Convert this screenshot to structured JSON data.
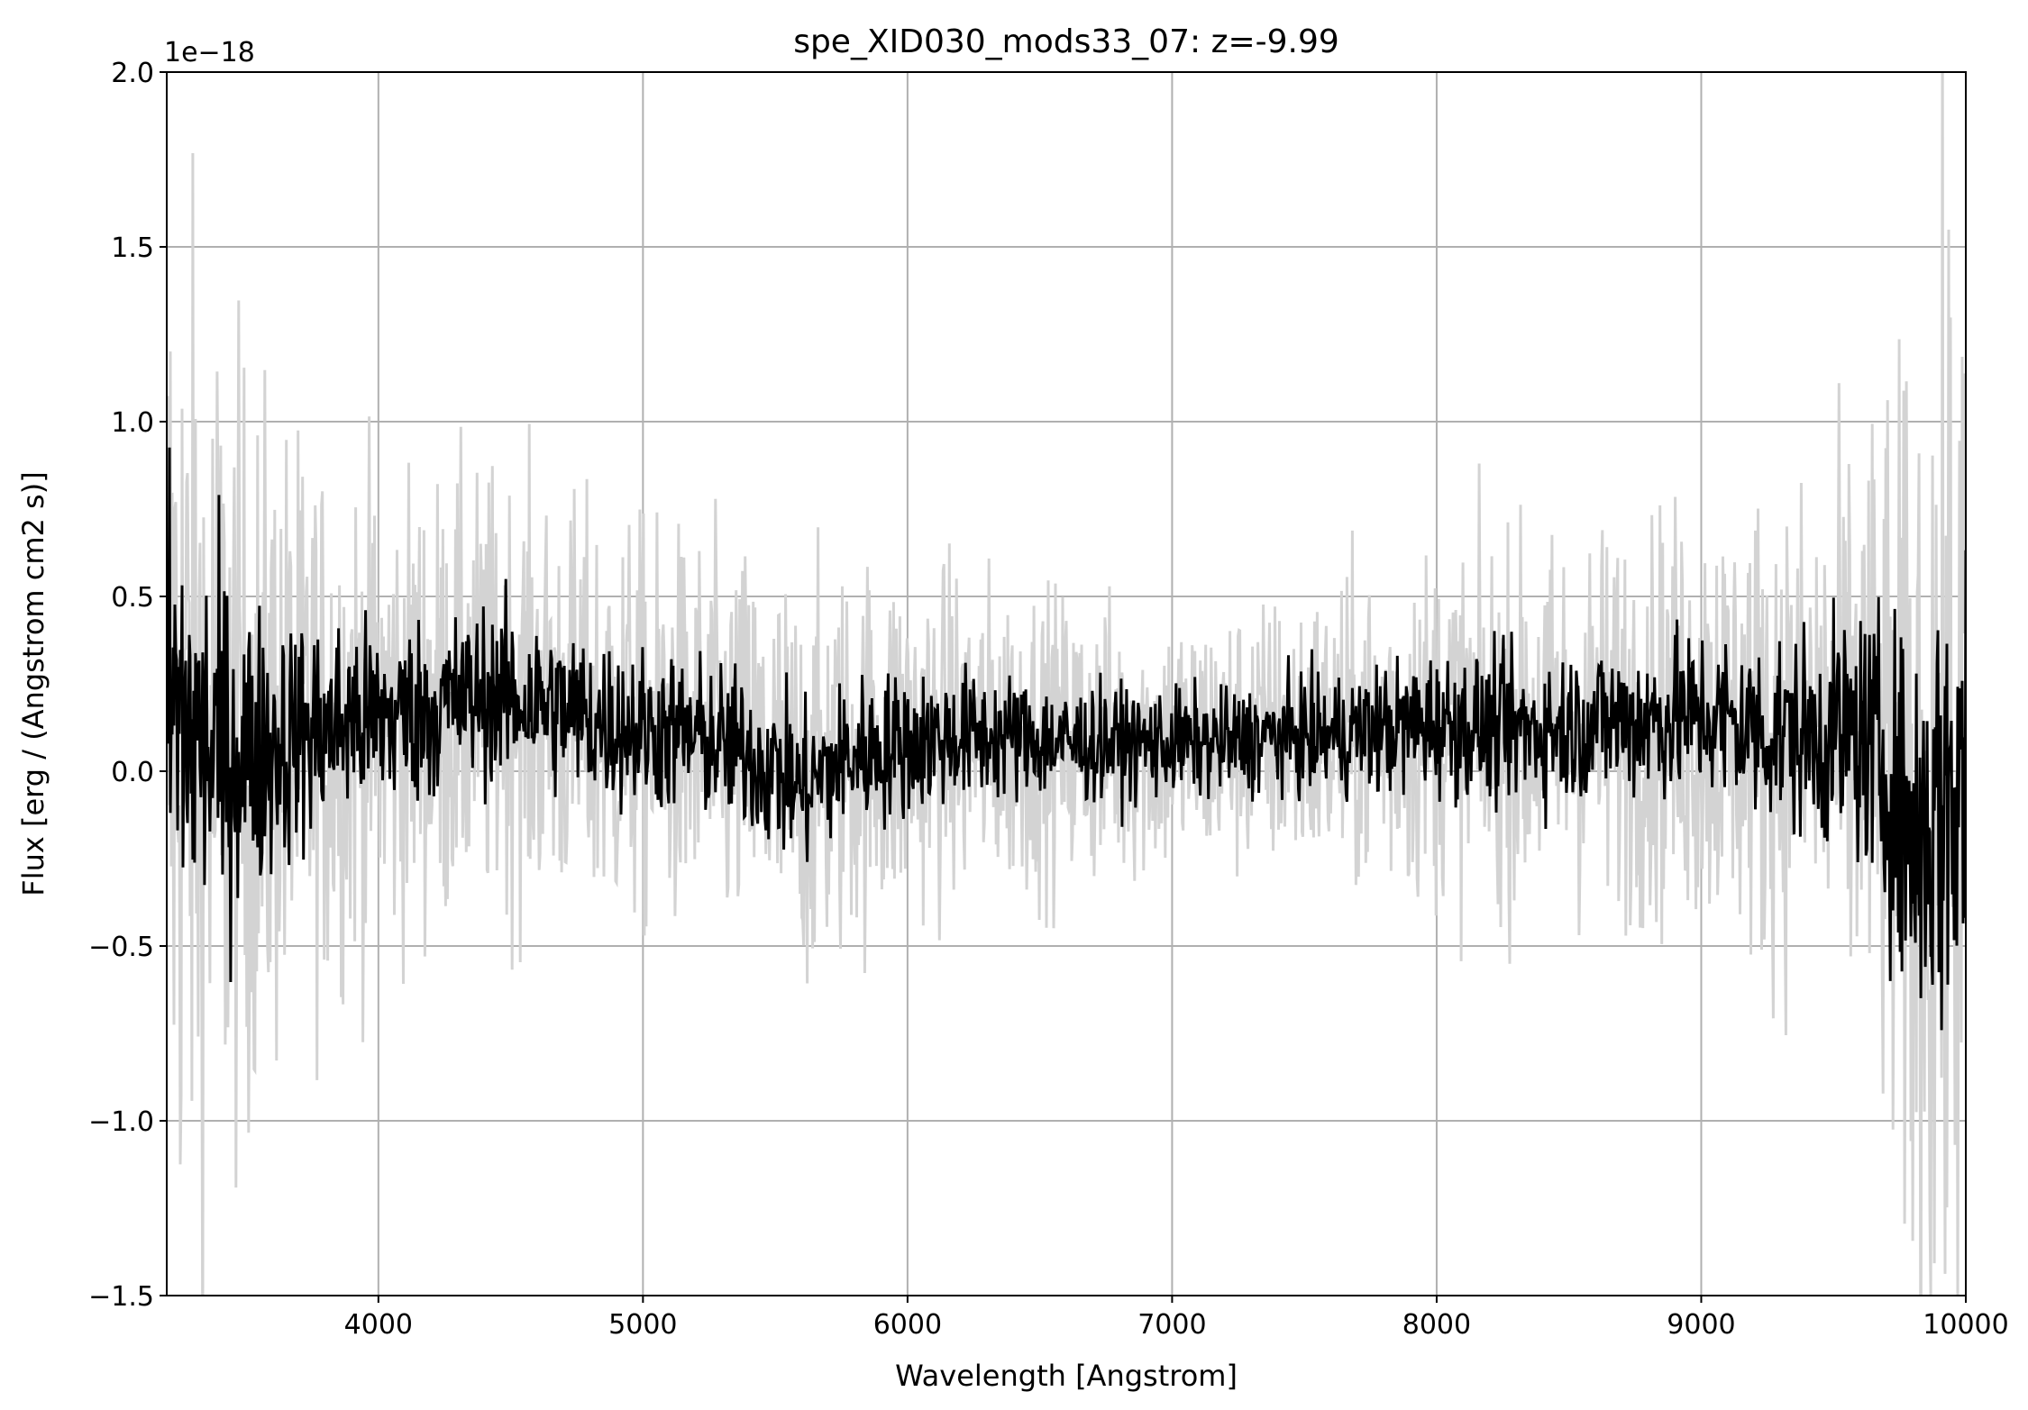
{
  "chart_data": {
    "type": "line",
    "title": "spe_XID030_mods33_07: z=-9.99",
    "xlabel": "Wavelength [Angstrom]",
    "ylabel": "Flux [erg / (Angstrom cm2 s)]",
    "y_offset_label": "1e−18",
    "xlim": [
      3200,
      10000
    ],
    "ylim": [
      -1.5e-18,
      2e-18
    ],
    "x_ticks": [
      4000,
      5000,
      6000,
      7000,
      8000,
      9000,
      10000
    ],
    "x_tick_labels": [
      "4000",
      "5000",
      "6000",
      "7000",
      "8000",
      "9000",
      "10000"
    ],
    "y_ticks": [
      -1.5,
      -1.0,
      -0.5,
      0.0,
      0.5,
      1.0,
      1.5,
      2.0
    ],
    "y_tick_labels": [
      "−1.5",
      "−1.0",
      "−0.5",
      "0.0",
      "0.5",
      "1.0",
      "1.5",
      "2.0"
    ],
    "grid": true,
    "series_colors": {
      "error": "#d3d3d3",
      "flux": "#000000"
    },
    "series": [
      {
        "name": "",
        "role": "error",
        "x": [
          3200,
          3300,
          3400,
          3500,
          3600,
          3700,
          3800,
          3900,
          4000,
          4200,
          4400,
          4600,
          4800,
          5000,
          5200,
          5400,
          5600,
          5800,
          6000,
          6200,
          6400,
          6600,
          6800,
          7000,
          7200,
          7400,
          7600,
          7800,
          8000,
          8200,
          8400,
          8600,
          8800,
          9000,
          9200,
          9400,
          9600,
          9700,
          9800,
          9900,
          10000
        ],
        "y": [
          2.2,
          1.9,
          1.7,
          1.4,
          1.25,
          1.1,
          1.0,
          0.95,
          0.9,
          0.85,
          0.82,
          0.8,
          0.78,
          0.76,
          0.74,
          0.74,
          0.76,
          0.72,
          0.68,
          0.62,
          0.58,
          0.55,
          0.52,
          0.5,
          0.5,
          0.52,
          0.56,
          0.62,
          0.66,
          0.68,
          0.7,
          0.72,
          0.76,
          0.8,
          0.86,
          0.95,
          1.15,
          1.4,
          1.8,
          2.2,
          2.4
        ]
      },
      {
        "name": "",
        "role": "flux",
        "x": [
          3200,
          3300,
          3400,
          3500,
          3600,
          3700,
          3800,
          3900,
          4000,
          4200,
          4400,
          4600,
          4800,
          5000,
          5200,
          5400,
          5600,
          5800,
          6000,
          6200,
          6400,
          6600,
          6800,
          7000,
          7200,
          7400,
          7600,
          7800,
          8000,
          8200,
          8400,
          8600,
          8800,
          9000,
          9200,
          9400,
          9600,
          9700,
          9800,
          9900,
          10000
        ],
        "y": [
          0.2,
          0.1,
          0.05,
          0.05,
          0.08,
          0.1,
          0.12,
          0.15,
          0.15,
          0.18,
          0.22,
          0.2,
          0.15,
          0.12,
          0.1,
          0.05,
          -0.05,
          0.05,
          0.08,
          0.1,
          0.1,
          0.08,
          0.08,
          0.08,
          0.08,
          0.1,
          0.1,
          0.12,
          0.14,
          0.12,
          0.12,
          0.14,
          0.15,
          0.16,
          0.12,
          0.1,
          0.1,
          0.0,
          -0.2,
          -0.1,
          0.0
        ]
      }
    ]
  }
}
